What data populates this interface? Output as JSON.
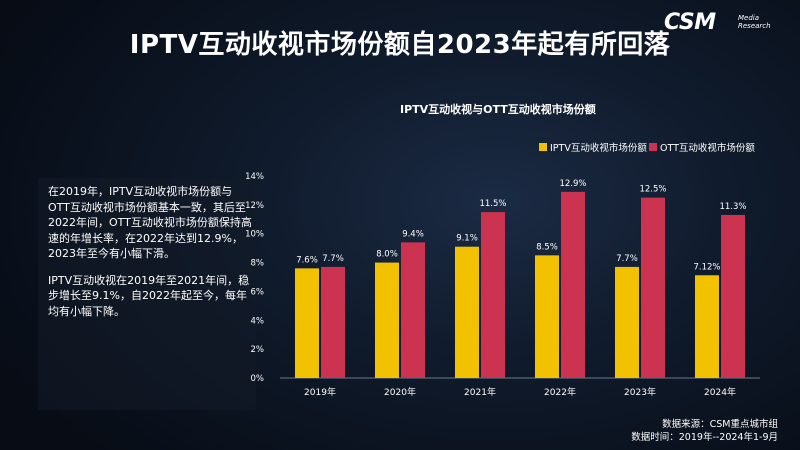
{
  "title": "IPTV互动收视市场份额自2023年起有所回落",
  "logo": {
    "main": "CSM",
    "sub_line1": "Media",
    "sub_line2": "Research"
  },
  "side_text": {
    "p1": "在2019年，IPTV互动收视市场份额与OTT互动收视市场份额基本一致，其后至2022年间，OTT互动收视市场份额保持高速的年增长率，在2022年达到12.9%，2023年至今有小幅下滑。",
    "p2": "IPTV互动收视在2019年至2021年间，稳步增长至9.1%，自2022年起至今，每年均有小幅下降。"
  },
  "footer": {
    "source": "数据来源：CSM重点城市组",
    "period": "数据时间：2019年--2024年1-9月"
  },
  "chart_data": {
    "type": "bar",
    "title": "IPTV互动收视与OTT互动收视市场份额",
    "categories": [
      "2019年",
      "2020年",
      "2021年",
      "2022年",
      "2023年",
      "2024年"
    ],
    "series": [
      {
        "name": "IPTV互动收视市场份额",
        "values": [
          7.6,
          8.0,
          9.1,
          8.5,
          7.7,
          7.12
        ],
        "labels": [
          "7.6%",
          "8.0%",
          "9.1%",
          "8.5%",
          "7.7%",
          "7.12%"
        ],
        "color": "#f2c200"
      },
      {
        "name": "OTT互动收视市场份额",
        "values": [
          7.7,
          9.4,
          11.5,
          12.9,
          12.5,
          11.3
        ],
        "labels": [
          "7.7%",
          "9.4%",
          "11.5%",
          "12.9%",
          "12.5%",
          "11.3%"
        ],
        "color": "#cc3350"
      }
    ],
    "ylim": [
      0,
      14
    ],
    "yticks": [
      0,
      2,
      4,
      6,
      8,
      10,
      12,
      14
    ],
    "ytick_labels": [
      "0%",
      "2%",
      "4%",
      "6%",
      "8%",
      "10%",
      "12%",
      "14%"
    ],
    "legend_position": "top-right",
    "grid": false
  }
}
